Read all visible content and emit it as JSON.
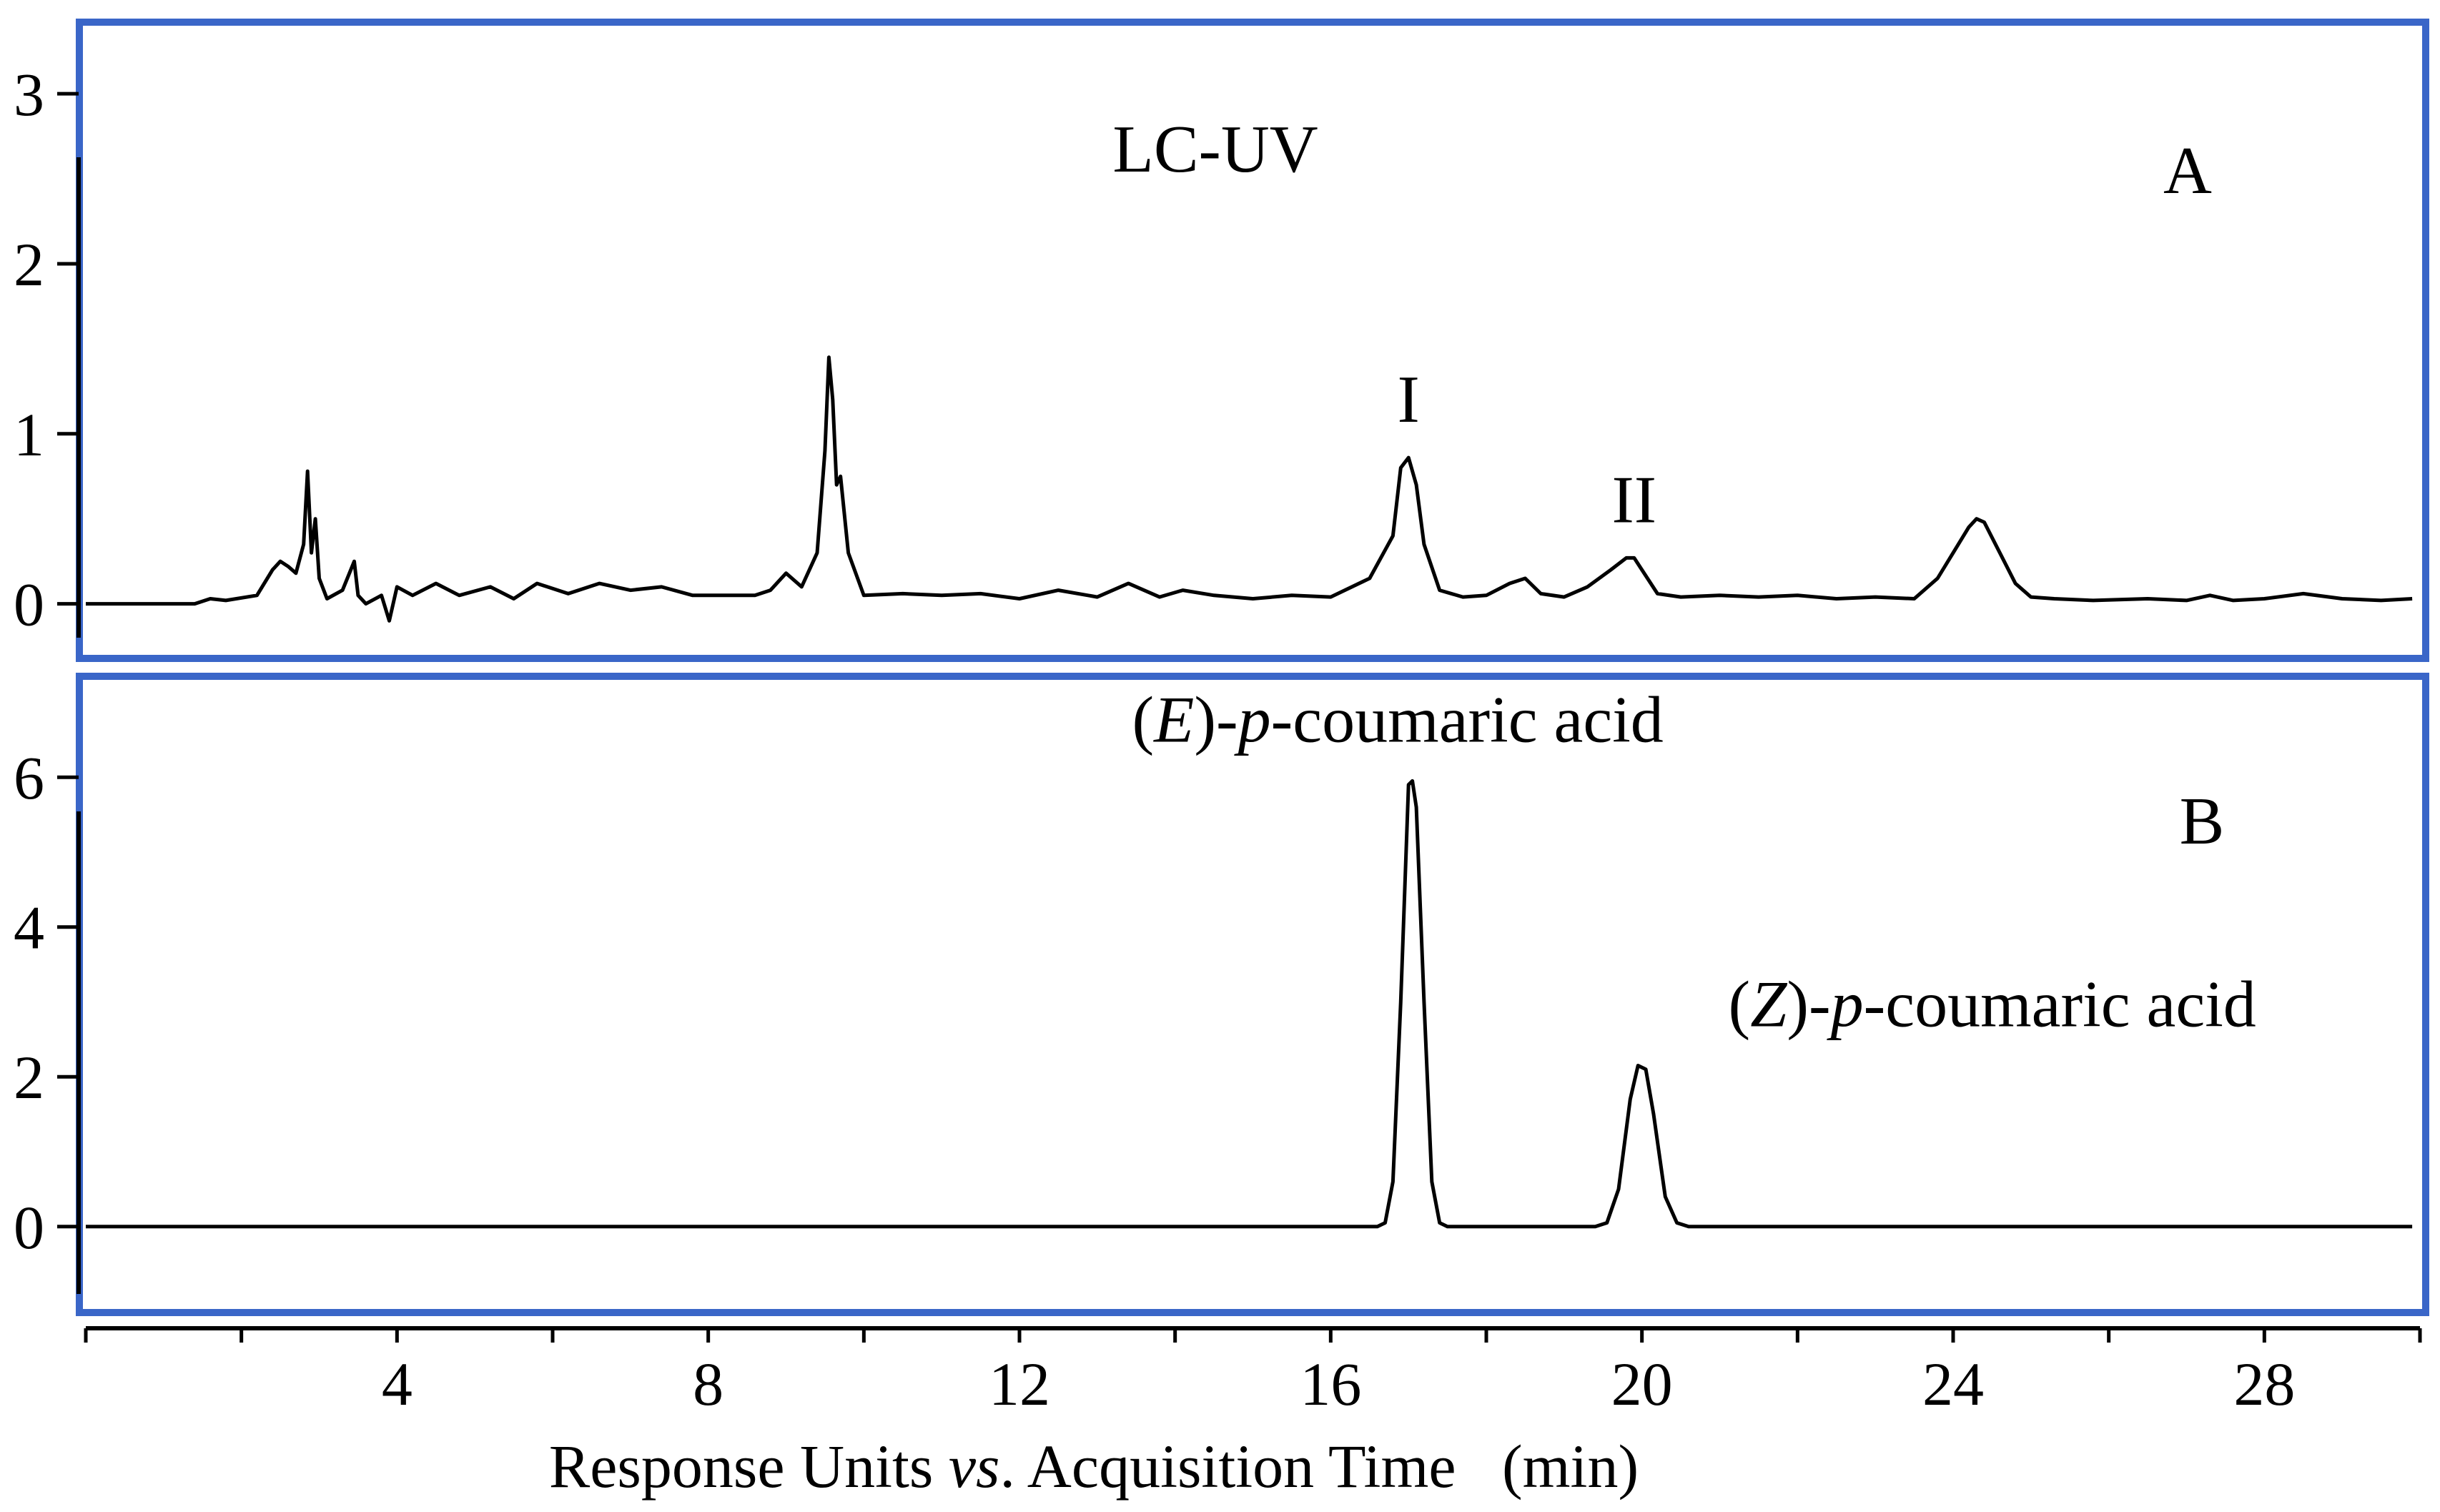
{
  "chart_data": [
    {
      "type": "line",
      "panel_label": "A",
      "annotation": "LC-UV",
      "xlim": [
        0,
        30
      ],
      "ylim": [
        -0.3,
        3.4
      ],
      "yticks": [
        0,
        1,
        2,
        3
      ],
      "peaks": [
        {
          "label": "I",
          "x": 17.0,
          "y": 0.86
        },
        {
          "label": "II",
          "x": 19.9,
          "y": 0.27
        }
      ],
      "series": [
        {
          "x": [
            0,
            1.4,
            1.6,
            1.8,
            2.2,
            2.4,
            2.5,
            2.6,
            2.7,
            2.8,
            2.85,
            2.9,
            2.95,
            3.0,
            3.1,
            3.3,
            3.45,
            3.5,
            3.6,
            3.8,
            3.9,
            4.0,
            4.2,
            4.5,
            4.8,
            5.2,
            5.5,
            5.8,
            6.2,
            6.6,
            7.0,
            7.4,
            7.8,
            8.2,
            8.6,
            8.8,
            9.0,
            9.2,
            9.4,
            9.5,
            9.55,
            9.6,
            9.65,
            9.7,
            9.8,
            10.0,
            10.5,
            11.0,
            11.5,
            12.0,
            12.5,
            13.0,
            13.4,
            13.8,
            14.1,
            14.5,
            15.0,
            15.5,
            16.0,
            16.5,
            16.8,
            16.9,
            17.0,
            17.1,
            17.2,
            17.4,
            17.7,
            18.0,
            18.3,
            18.5,
            18.7,
            19.0,
            19.3,
            19.6,
            19.8,
            19.9,
            20.0,
            20.2,
            20.5,
            21.0,
            21.5,
            22.0,
            22.5,
            23.0,
            23.5,
            23.8,
            24.0,
            24.2,
            24.3,
            24.4,
            24.6,
            24.8,
            25.0,
            25.3,
            25.8,
            26.5,
            27.0,
            27.3,
            27.6,
            28.0,
            28.5,
            29.0,
            29.5,
            29.9
          ],
          "y": [
            0,
            0,
            0.03,
            0.02,
            0.05,
            0.2,
            0.25,
            0.22,
            0.18,
            0.35,
            0.78,
            0.3,
            0.5,
            0.15,
            0.03,
            0.08,
            0.25,
            0.05,
            0.0,
            0.05,
            -0.1,
            0.1,
            0.05,
            0.12,
            0.05,
            0.1,
            0.03,
            0.12,
            0.06,
            0.12,
            0.08,
            0.1,
            0.05,
            0.05,
            0.05,
            0.08,
            0.18,
            0.1,
            0.3,
            0.9,
            1.45,
            1.2,
            0.7,
            0.75,
            0.3,
            0.05,
            0.06,
            0.05,
            0.06,
            0.03,
            0.08,
            0.04,
            0.12,
            0.04,
            0.08,
            0.05,
            0.03,
            0.05,
            0.04,
            0.15,
            0.4,
            0.8,
            0.86,
            0.7,
            0.35,
            0.08,
            0.04,
            0.05,
            0.12,
            0.15,
            0.06,
            0.04,
            0.1,
            0.2,
            0.27,
            0.27,
            0.2,
            0.06,
            0.04,
            0.05,
            0.04,
            0.05,
            0.03,
            0.04,
            0.03,
            0.15,
            0.3,
            0.45,
            0.5,
            0.48,
            0.3,
            0.12,
            0.04,
            0.03,
            0.02,
            0.03,
            0.02,
            0.05,
            0.02,
            0.03,
            0.06,
            0.03,
            0.02,
            0.03
          ]
        }
      ]
    },
    {
      "type": "line",
      "panel_label": "B",
      "xlim": [
        0,
        30
      ],
      "ylim": [
        -1.1,
        7.3
      ],
      "yticks": [
        0,
        2,
        4,
        6
      ],
      "peaks": [
        {
          "label_prefix": "(",
          "label_italic": "E",
          "label_mid": ")-",
          "label_italic2": "p",
          "label_suffix": "-coumaric acid",
          "x": 17.0,
          "y": 5.95
        },
        {
          "label_prefix": "(",
          "label_italic": "Z",
          "label_mid": ")-",
          "label_italic2": "p",
          "label_suffix": "-coumaric acid",
          "x": 20.0,
          "y": 2.15
        }
      ],
      "series": [
        {
          "x": [
            0,
            16.6,
            16.7,
            16.8,
            16.9,
            17.0,
            17.05,
            17.1,
            17.2,
            17.3,
            17.4,
            17.5,
            19.4,
            19.55,
            19.7,
            19.85,
            19.95,
            20.05,
            20.15,
            20.3,
            20.45,
            20.6,
            29.9
          ],
          "y": [
            0,
            0,
            0.05,
            0.6,
            3.0,
            5.9,
            5.95,
            5.6,
            3.0,
            0.6,
            0.05,
            0,
            0,
            0.05,
            0.5,
            1.7,
            2.15,
            2.1,
            1.5,
            0.4,
            0.05,
            0,
            0
          ]
        }
      ]
    }
  ],
  "x_axis": {
    "ticks_major": [
      4,
      8,
      12,
      16,
      20,
      24,
      28
    ],
    "ticks_all": [
      0,
      2,
      4,
      6,
      8,
      10,
      12,
      14,
      16,
      18,
      20,
      22,
      24,
      26,
      28,
      30
    ],
    "label_part1": "Response Units ",
    "label_italic": "vs",
    "label_part2": ". Acquisition Time   (min)"
  },
  "colors": {
    "frame": "#3a66c8",
    "line": "#000000"
  }
}
